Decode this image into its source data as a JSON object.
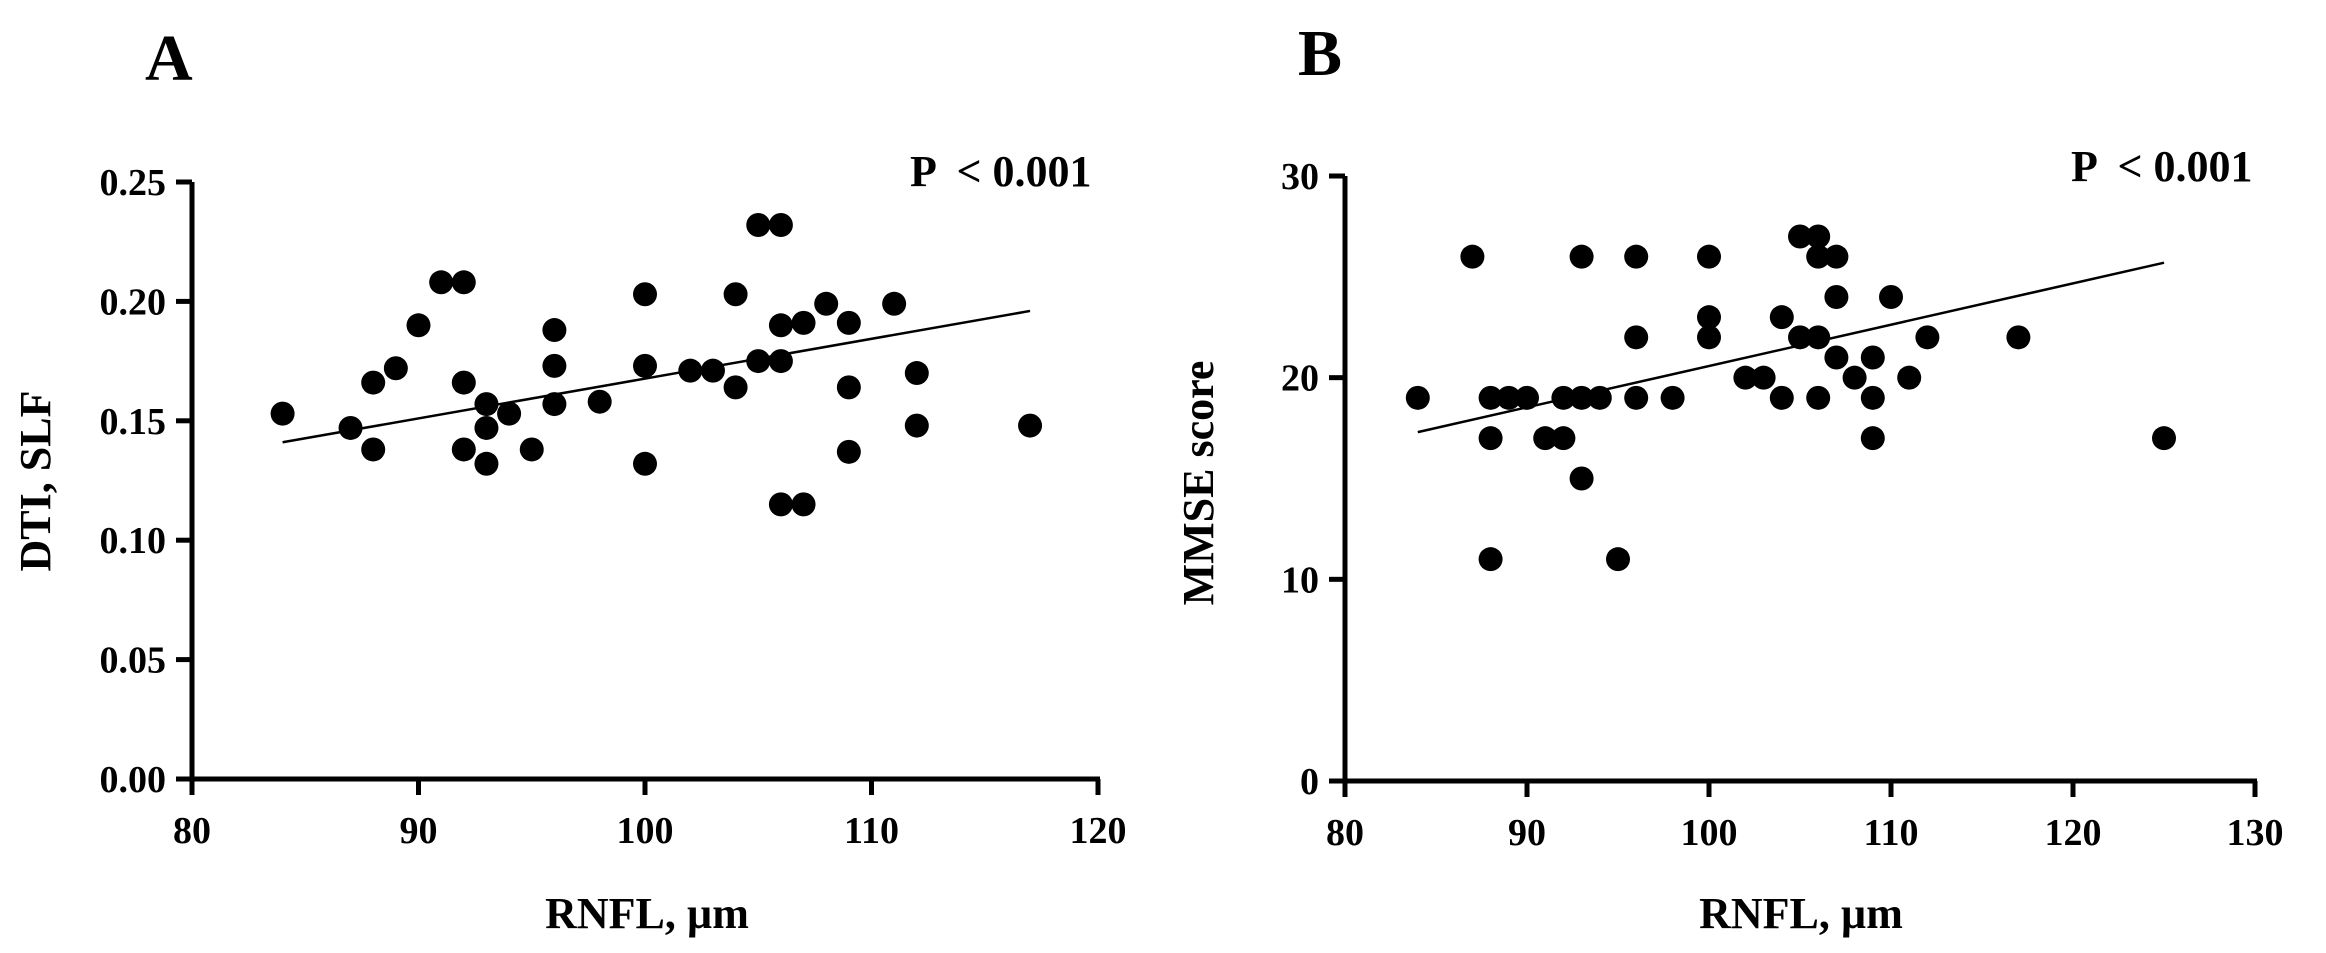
{
  "chart_data": [
    {
      "panel": "A",
      "type": "scatter",
      "annotation": "P  < 0.001",
      "xlabel": "RNFL, µm",
      "ylabel": "DTI, SLF",
      "xlim": [
        80,
        120
      ],
      "ylim": [
        0,
        0.25
      ],
      "xticks": [
        "80",
        "90",
        "100",
        "110",
        "120"
      ],
      "yticks": [
        "0.00",
        "0.05",
        "0.10",
        "0.15",
        "0.20",
        "0.25"
      ],
      "trendline": {
        "x": [
          84,
          117
        ],
        "y": [
          0.141,
          0.196
        ]
      },
      "points": [
        [
          84,
          0.153
        ],
        [
          87,
          0.147
        ],
        [
          88,
          0.166
        ],
        [
          88,
          0.138
        ],
        [
          89,
          0.172
        ],
        [
          90,
          0.19
        ],
        [
          91,
          0.208
        ],
        [
          92,
          0.208
        ],
        [
          92,
          0.166
        ],
        [
          92,
          0.138
        ],
        [
          93,
          0.157
        ],
        [
          93,
          0.147
        ],
        [
          93,
          0.132
        ],
        [
          94,
          0.153
        ],
        [
          95,
          0.138
        ],
        [
          96,
          0.188
        ],
        [
          96,
          0.173
        ],
        [
          96,
          0.157
        ],
        [
          98,
          0.158
        ],
        [
          100,
          0.203
        ],
        [
          100,
          0.173
        ],
        [
          100,
          0.132
        ],
        [
          102,
          0.171
        ],
        [
          103,
          0.171
        ],
        [
          104,
          0.203
        ],
        [
          104,
          0.164
        ],
        [
          105,
          0.232
        ],
        [
          105,
          0.175
        ],
        [
          106,
          0.232
        ],
        [
          106,
          0.19
        ],
        [
          106,
          0.175
        ],
        [
          106,
          0.115
        ],
        [
          107,
          0.191
        ],
        [
          107,
          0.115
        ],
        [
          108,
          0.199
        ],
        [
          109,
          0.191
        ],
        [
          109,
          0.164
        ],
        [
          109,
          0.137
        ],
        [
          111,
          0.199
        ],
        [
          112,
          0.17
        ],
        [
          112,
          0.148
        ],
        [
          117,
          0.148
        ]
      ]
    },
    {
      "panel": "B",
      "type": "scatter",
      "annotation": "P  < 0.001",
      "xlabel": "RNFL, µm",
      "ylabel": "MMSE score",
      "xlim": [
        80,
        130
      ],
      "ylim": [
        0,
        30
      ],
      "xticks": [
        "80",
        "90",
        "100",
        "110",
        "120",
        "130"
      ],
      "yticks": [
        "0",
        "10",
        "20",
        "30"
      ],
      "trendline": {
        "x": [
          84,
          125
        ],
        "y": [
          17.3,
          25.7
        ]
      },
      "points": [
        [
          84,
          19
        ],
        [
          87,
          26
        ],
        [
          88,
          19
        ],
        [
          88,
          17
        ],
        [
          88,
          11
        ],
        [
          89,
          19
        ],
        [
          90,
          19
        ],
        [
          91,
          17
        ],
        [
          92,
          19
        ],
        [
          92,
          17
        ],
        [
          93,
          26
        ],
        [
          93,
          19
        ],
        [
          93,
          15
        ],
        [
          94,
          19
        ],
        [
          95,
          11
        ],
        [
          96,
          26
        ],
        [
          96,
          22
        ],
        [
          96,
          19
        ],
        [
          98,
          19
        ],
        [
          100,
          26
        ],
        [
          100,
          23
        ],
        [
          100,
          22
        ],
        [
          102,
          20
        ],
        [
          103,
          20
        ],
        [
          104,
          23
        ],
        [
          104,
          19
        ],
        [
          105,
          27
        ],
        [
          105,
          22
        ],
        [
          106,
          27
        ],
        [
          106,
          26
        ],
        [
          106,
          22
        ],
        [
          106,
          19
        ],
        [
          107,
          26
        ],
        [
          107,
          24
        ],
        [
          107,
          21
        ],
        [
          108,
          20
        ],
        [
          109,
          21
        ],
        [
          109,
          19
        ],
        [
          109,
          17
        ],
        [
          110,
          24
        ],
        [
          111,
          20
        ],
        [
          112,
          22
        ],
        [
          117,
          22
        ],
        [
          125,
          17
        ]
      ]
    }
  ]
}
